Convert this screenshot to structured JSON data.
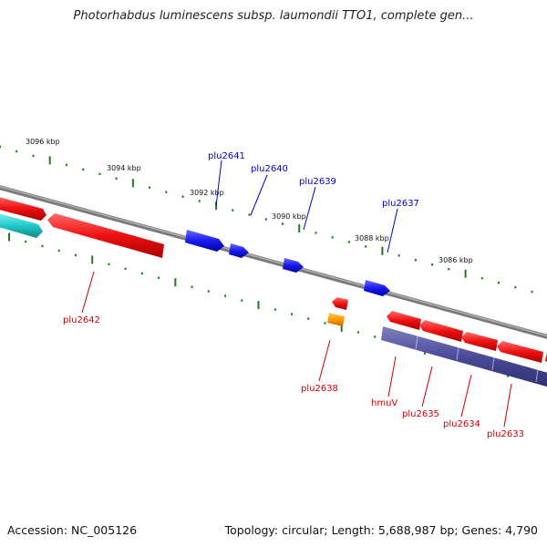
{
  "title": "Photorhabdus luminescens subsp. laumondii TTO1, complete gen...",
  "footer": {
    "accession": "Accession: NC_005126",
    "summary": "Topology: circular; Length: 5,688,987 bp; Genes: 4,790"
  },
  "colors": {
    "backbone": "#8a8a8a",
    "tick": "#1e7a1e",
    "forward_gene": "#1a1aee",
    "reverse_gene": "#ee1111",
    "teal_gene": "#22cccc",
    "orange_gene": "#ff9900",
    "purple_gene": "#4a4a9a",
    "forward_label": "#0000cc",
    "reverse_label": "#cc0000"
  },
  "scale_labels": [
    "3096 kbp",
    "3094 kbp",
    "3092 kbp",
    "3090 kbp",
    "3088 kbp",
    "3086 kbp"
  ],
  "gene_labels": {
    "forward": [
      "plu2641",
      "plu2640",
      "plu2639",
      "plu2637"
    ],
    "reverse": [
      "plu2642",
      "plu2638",
      "hmuV",
      "plu2635",
      "plu2634",
      "plu2633"
    ]
  }
}
